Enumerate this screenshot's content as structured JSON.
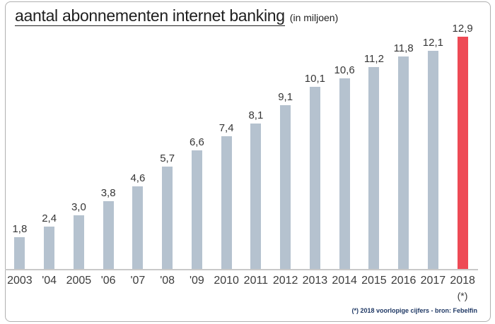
{
  "chart_data": {
    "type": "bar",
    "title": "aantal abonnementen internet banking",
    "subtitle": "(in miljoen)",
    "categories": [
      "2003",
      "'04",
      "2005",
      "'06",
      "'07",
      "'08",
      "'09",
      "2010",
      "2011",
      "2012",
      "2013",
      "2014",
      "2015",
      "2016",
      "2017",
      "2018"
    ],
    "values": [
      1.8,
      2.4,
      3.0,
      3.8,
      4.6,
      5.7,
      6.6,
      7.4,
      8.1,
      9.1,
      10.1,
      10.6,
      11.2,
      11.8,
      12.1,
      12.9
    ],
    "value_labels": [
      "1,8",
      "2,4",
      "3,0",
      "3,8",
      "4,6",
      "5,7",
      "6,6",
      "7,4",
      "8,1",
      "9,1",
      "10,1",
      "10,6",
      "11,2",
      "11,8",
      "12,1",
      "12,9"
    ],
    "xlabel": "",
    "ylabel": "",
    "ylim": [
      0,
      13.9
    ],
    "grid": false,
    "legend": false,
    "bar_color": "#b5c2cf",
    "highlight_color": "#ee4a55",
    "highlight_index": 15,
    "footnote_marker": "(*)",
    "footnote": "(*) 2018 voorlopige cijfers - bron: Febelfin"
  }
}
